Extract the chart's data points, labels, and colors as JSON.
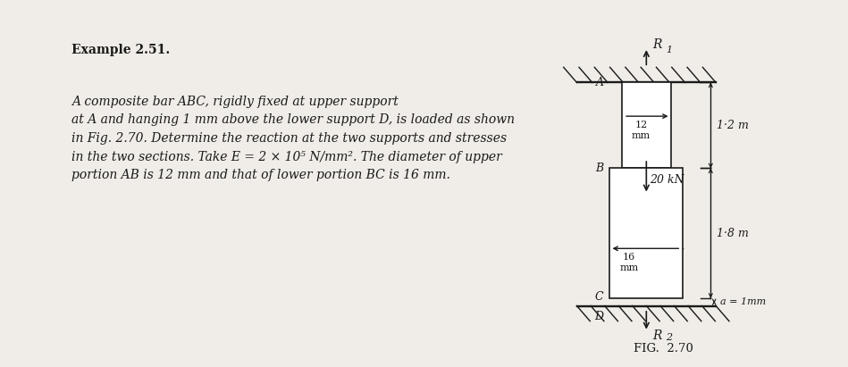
{
  "bg_color": "#f0ede8",
  "text_color": "#1a1a1a",
  "title_bold": "Example 2.51.",
  "body_text": "A composite bar ABC, rigidly fixed at upper support\nat A and hanging 1 mm above the lower support D, is loaded as shown\nin Fig. 2.70. Determine the reaction at the two supports and stresses\nin the two sections. Take E = 2 × 10⁵ N/mm². The diameter of upper\nportion AB is 12 mm and that of lower portion BC is 16 mm.",
  "fig_label": "FIG.  2.70",
  "label_A": "A",
  "label_B": "B",
  "label_C": "C",
  "label_D": "D",
  "label_R1": "R",
  "label_R1_sub": "1",
  "label_R2": "R",
  "label_R2_sub": "2",
  "label_12mm": "12\nmm",
  "label_16mm": "16\nmm",
  "label_load": "20 kN",
  "label_12m": "1·2 m",
  "label_18m": "1·8 m",
  "label_gap": "a = 1mm",
  "bar_edge_color": "#1a1a1a",
  "lw": 1.2
}
